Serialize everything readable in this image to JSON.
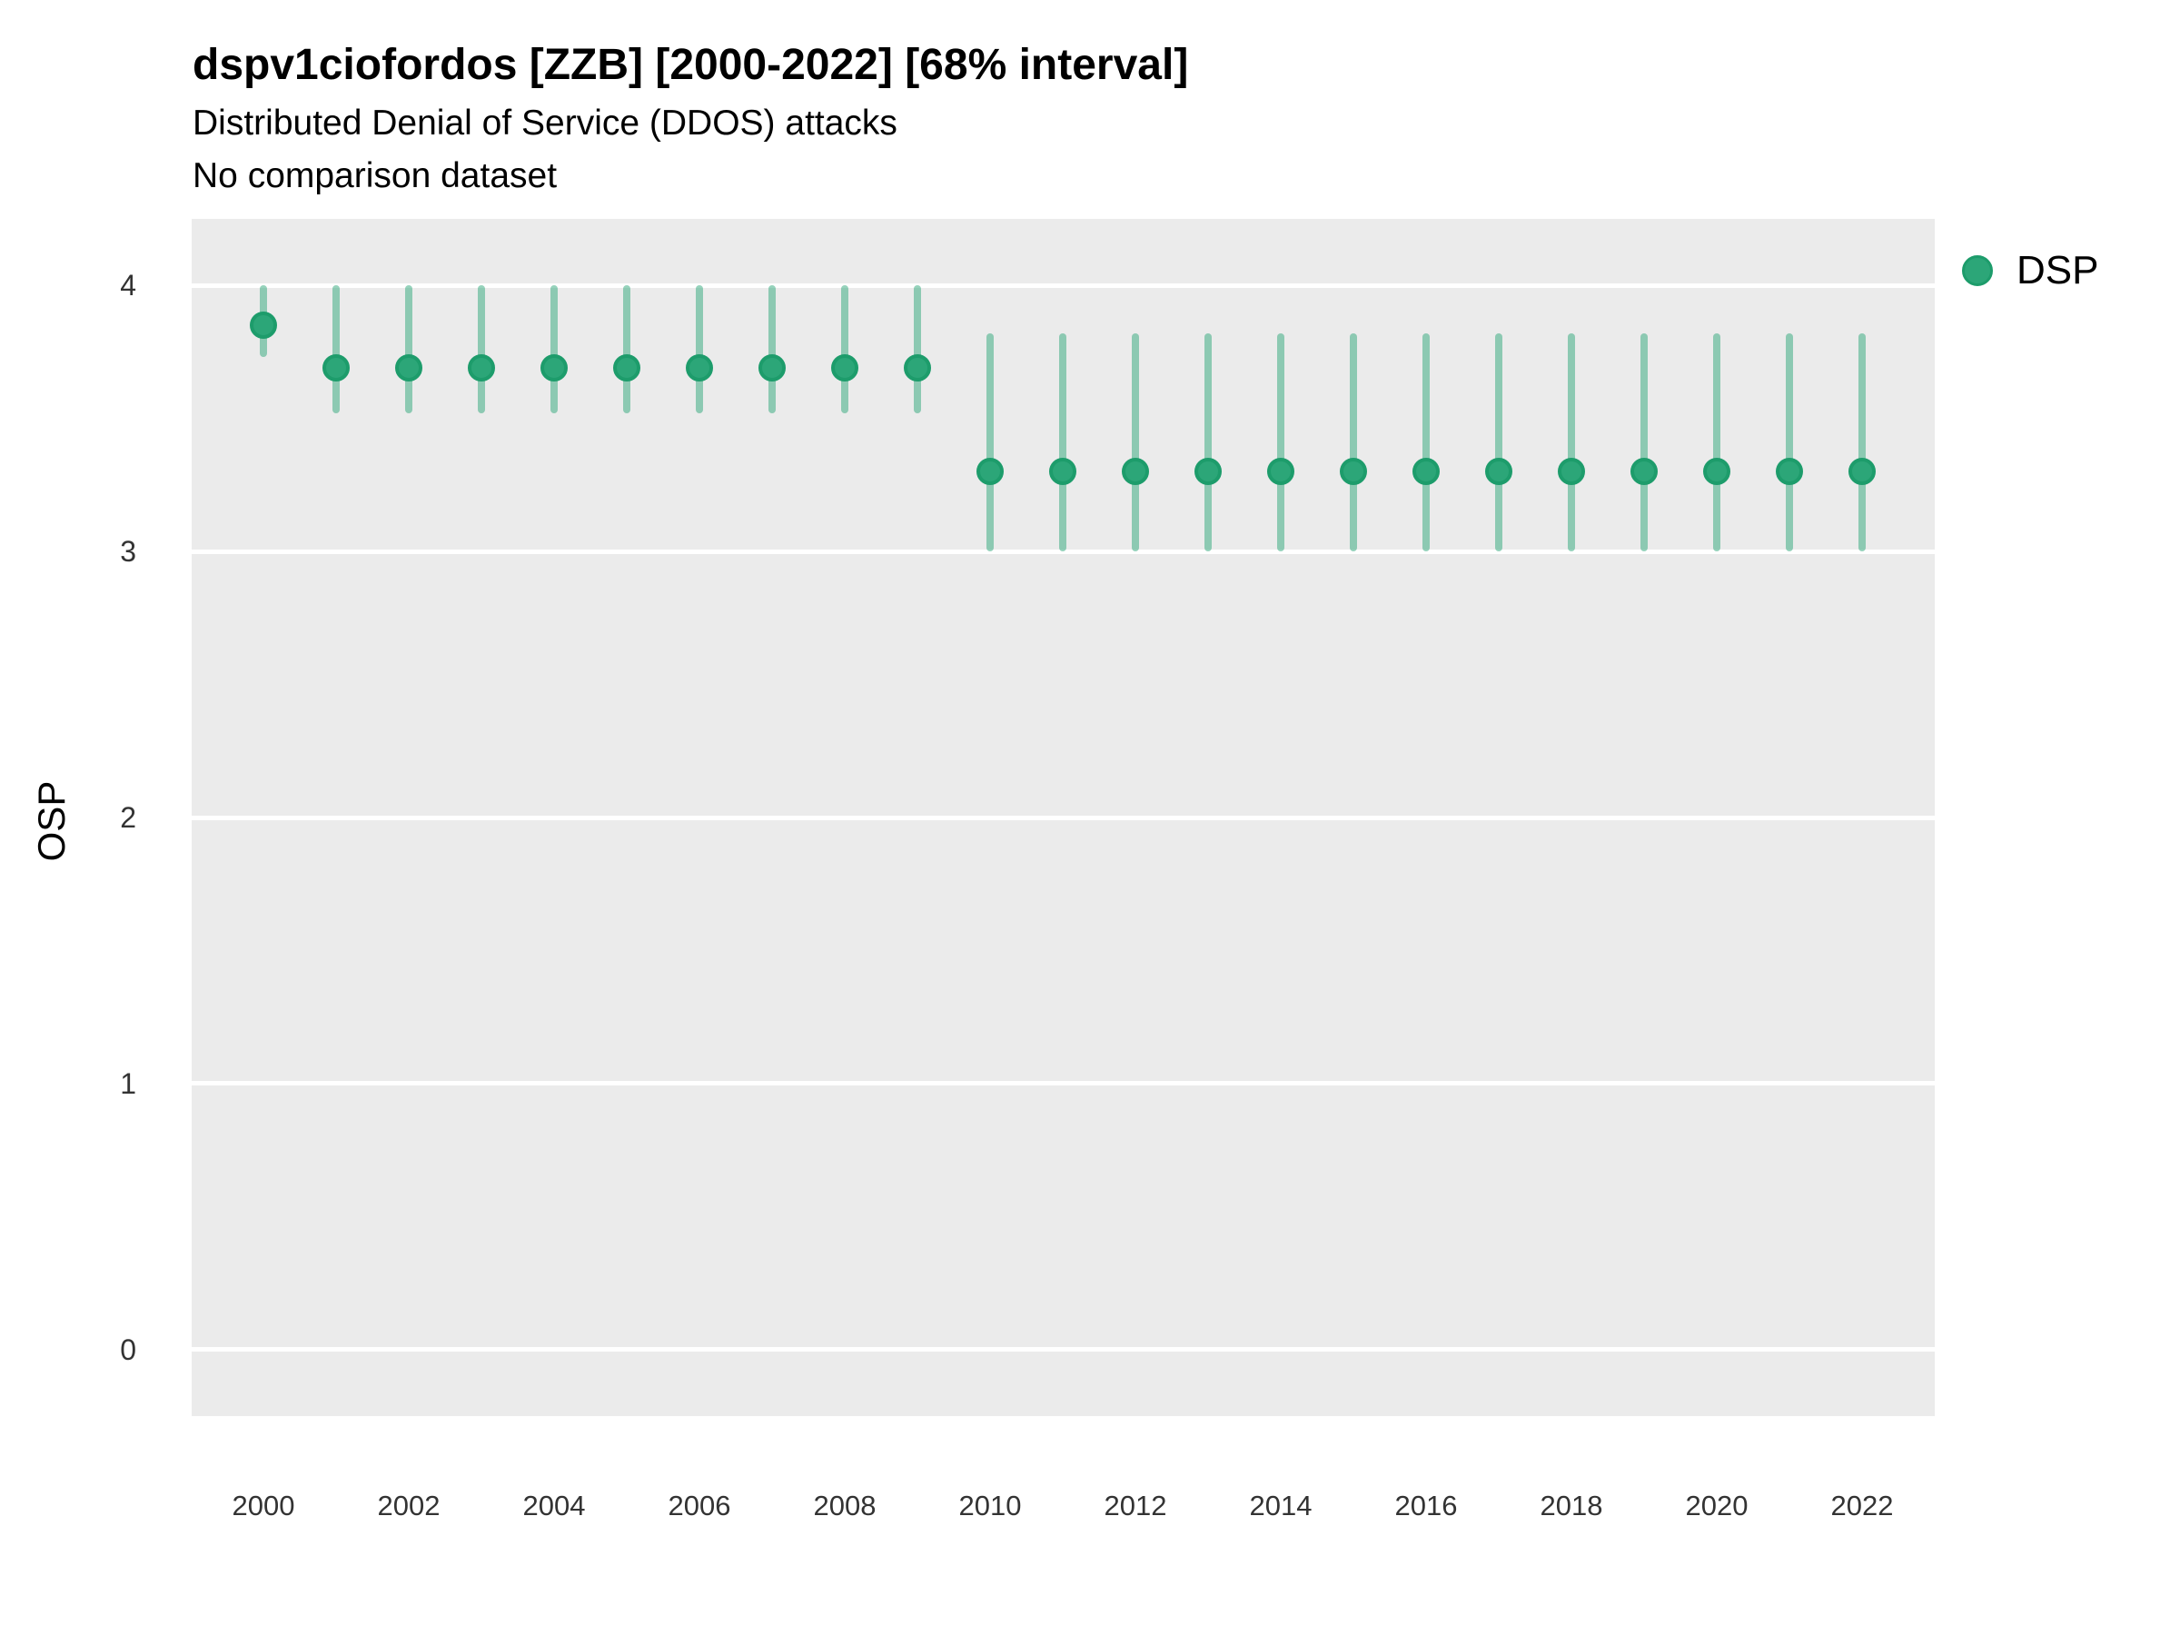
{
  "title": "dspv1ciofordos [ZZB] [2000-2022] [68% interval]",
  "subtitle": "Distributed Denial of Service (DDOS) attacks",
  "comparison_note": "No comparison dataset",
  "legend": {
    "label": "DSP",
    "color": "#2CA678"
  },
  "y_axis": {
    "label": "OSP",
    "ticks": [
      4,
      3,
      2,
      1,
      0
    ]
  },
  "x_axis": {
    "ticks": [
      2000,
      2002,
      2004,
      2006,
      2008,
      2010,
      2012,
      2014,
      2016,
      2018,
      2020,
      2022
    ]
  },
  "colors": {
    "panel_background": "#EBEBEB",
    "gridline": "#FFFFFF",
    "point_fill": "#2CA678",
    "point_stroke": "#1D9C6B",
    "interval_bar": "rgba(45,167,121,0.5)",
    "text": "#000000"
  },
  "chart_data": {
    "type": "scatter",
    "title": "dspv1ciofordos [ZZB] [2000-2022] [68% interval]",
    "subtitle": "Distributed Denial of Service (DDOS) attacks",
    "xlabel": "",
    "ylabel": "OSP",
    "ylim": [
      -0.25,
      4.25
    ],
    "xlim": [
      1999,
      2023
    ],
    "grid": "major-horizontal",
    "legend_position": "right-top",
    "interval_level": "68%",
    "series": [
      {
        "name": "DSP",
        "points": [
          {
            "year": 2000,
            "value": 3.85,
            "lo": 3.73,
            "hi": 4.0
          },
          {
            "year": 2001,
            "value": 3.69,
            "lo": 3.52,
            "hi": 4.0
          },
          {
            "year": 2002,
            "value": 3.69,
            "lo": 3.52,
            "hi": 4.0
          },
          {
            "year": 2003,
            "value": 3.69,
            "lo": 3.52,
            "hi": 4.0
          },
          {
            "year": 2004,
            "value": 3.69,
            "lo": 3.52,
            "hi": 4.0
          },
          {
            "year": 2005,
            "value": 3.69,
            "lo": 3.52,
            "hi": 4.0
          },
          {
            "year": 2006,
            "value": 3.69,
            "lo": 3.52,
            "hi": 4.0
          },
          {
            "year": 2007,
            "value": 3.69,
            "lo": 3.52,
            "hi": 4.0
          },
          {
            "year": 2008,
            "value": 3.69,
            "lo": 3.52,
            "hi": 4.0
          },
          {
            "year": 2009,
            "value": 3.69,
            "lo": 3.52,
            "hi": 4.0
          },
          {
            "year": 2010,
            "value": 3.3,
            "lo": 3.0,
            "hi": 3.82
          },
          {
            "year": 2011,
            "value": 3.3,
            "lo": 3.0,
            "hi": 3.82
          },
          {
            "year": 2012,
            "value": 3.3,
            "lo": 3.0,
            "hi": 3.82
          },
          {
            "year": 2013,
            "value": 3.3,
            "lo": 3.0,
            "hi": 3.82
          },
          {
            "year": 2014,
            "value": 3.3,
            "lo": 3.0,
            "hi": 3.82
          },
          {
            "year": 2015,
            "value": 3.3,
            "lo": 3.0,
            "hi": 3.82
          },
          {
            "year": 2016,
            "value": 3.3,
            "lo": 3.0,
            "hi": 3.82
          },
          {
            "year": 2017,
            "value": 3.3,
            "lo": 3.0,
            "hi": 3.82
          },
          {
            "year": 2018,
            "value": 3.3,
            "lo": 3.0,
            "hi": 3.82
          },
          {
            "year": 2019,
            "value": 3.3,
            "lo": 3.0,
            "hi": 3.82
          },
          {
            "year": 2020,
            "value": 3.3,
            "lo": 3.0,
            "hi": 3.82
          },
          {
            "year": 2021,
            "value": 3.3,
            "lo": 3.0,
            "hi": 3.82
          },
          {
            "year": 2022,
            "value": 3.3,
            "lo": 3.0,
            "hi": 3.82
          }
        ]
      }
    ]
  }
}
